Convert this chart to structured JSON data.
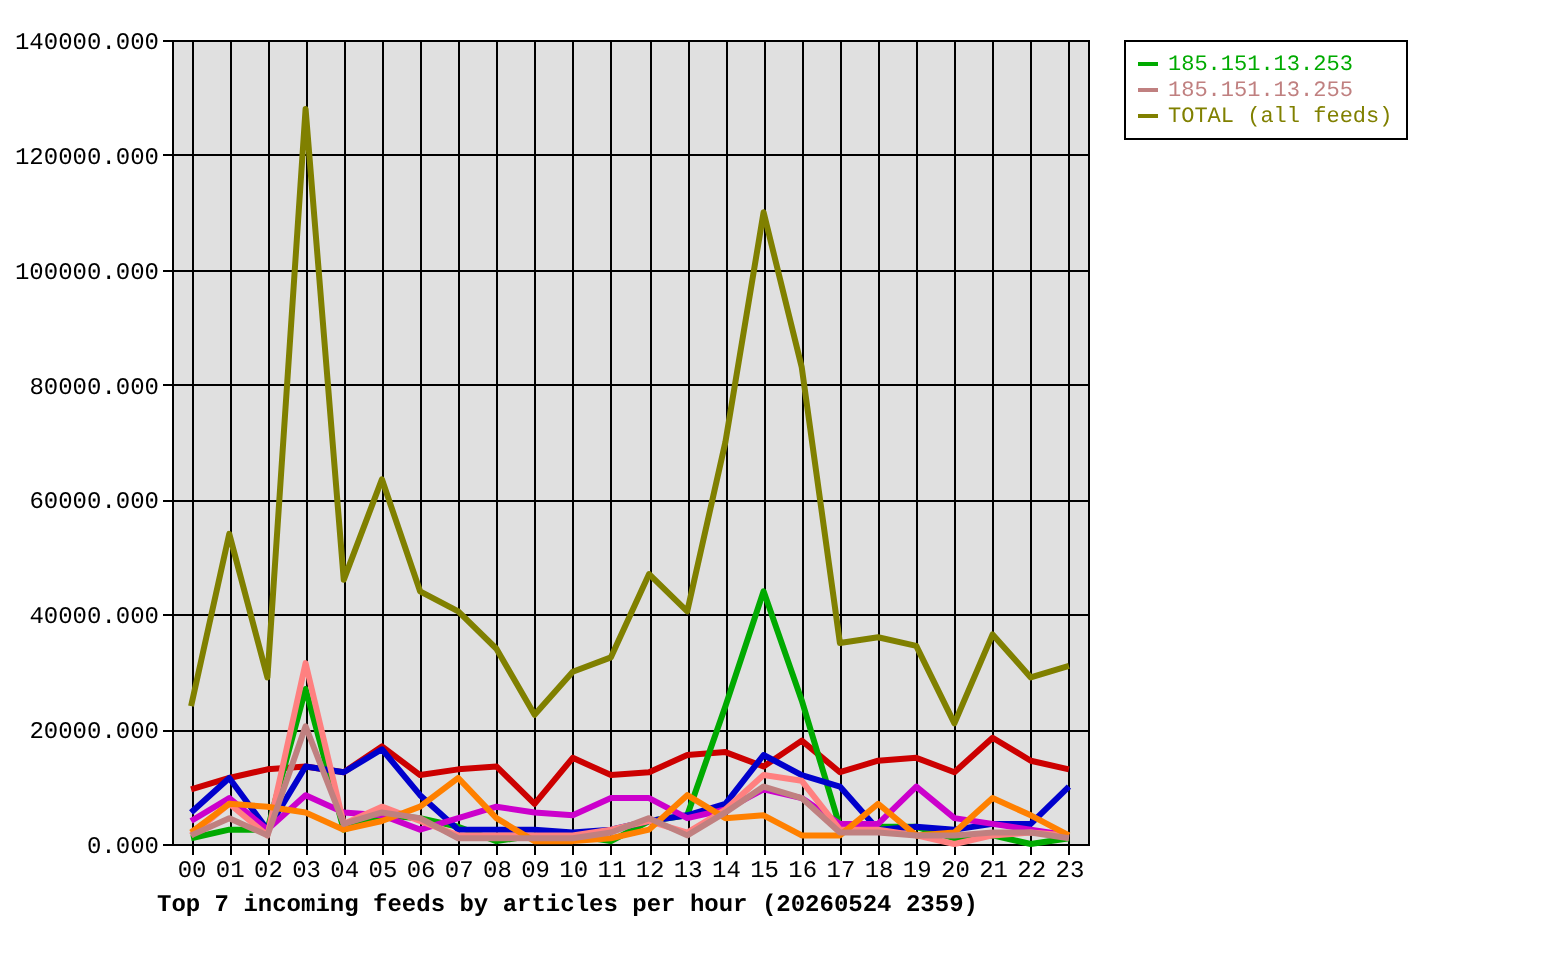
{
  "chart_data": {
    "type": "line",
    "xlabel": "Top 7 incoming feeds by articles per hour (20260524 2359)",
    "categories": [
      "00",
      "01",
      "02",
      "03",
      "04",
      "05",
      "06",
      "07",
      "08",
      "09",
      "10",
      "11",
      "12",
      "13",
      "14",
      "15",
      "16",
      "17",
      "18",
      "19",
      "20",
      "21",
      "22",
      "23"
    ],
    "ylim": [
      0,
      140000
    ],
    "yticks": [
      {
        "value": 0,
        "label": "0.000"
      },
      {
        "value": 20000,
        "label": "20000.000"
      },
      {
        "value": 40000,
        "label": "40000.000"
      },
      {
        "value": 60000,
        "label": "60000.000"
      },
      {
        "value": 80000,
        "label": "80000.000"
      },
      {
        "value": 100000,
        "label": "100000.000"
      },
      {
        "value": 120000,
        "label": "120000.000"
      },
      {
        "value": 140000,
        "label": "140000.000"
      }
    ],
    "grid": true,
    "legend": "top right",
    "series": [
      {
        "color": "#cc0000",
        "values": [
          9500,
          11500,
          13000,
          13500,
          12500,
          17000,
          12000,
          13000,
          13500,
          7000,
          15000,
          12000,
          12500,
          15500,
          16000,
          13500,
          18000,
          12500,
          14500,
          15000,
          12500,
          18500,
          14500,
          13000
        ]
      },
      {
        "name": "185.151.13.253",
        "color": "#00aa00",
        "values": [
          1000,
          2500,
          2500,
          27000,
          2500,
          5000,
          4500,
          3000,
          500,
          1500,
          1500,
          500,
          4000,
          5000,
          24000,
          44000,
          25000,
          3000,
          3000,
          3000,
          1000,
          1500,
          0,
          1000
        ]
      },
      {
        "color": "#0000cc",
        "values": [
          5500,
          11500,
          2500,
          13500,
          12500,
          16500,
          8500,
          2500,
          2500,
          2500,
          2000,
          2500,
          4000,
          5000,
          7000,
          15500,
          12000,
          10000,
          2500,
          3000,
          2500,
          3500,
          3500,
          10000
        ]
      },
      {
        "color": "#cc00cc",
        "values": [
          4000,
          8000,
          2500,
          8500,
          5500,
          5000,
          2500,
          4500,
          6500,
          5500,
          5000,
          8000,
          8000,
          4500,
          6000,
          9500,
          8000,
          3500,
          3500,
          10000,
          4500,
          3500,
          2500,
          1500
        ]
      },
      {
        "color": "#ff8080",
        "values": [
          1500,
          7000,
          1500,
          31500,
          3500,
          6500,
          4000,
          1500,
          1500,
          1500,
          1500,
          2500,
          4000,
          2000,
          6000,
          12000,
          11000,
          2500,
          2500,
          1500,
          0,
          1500,
          2000,
          1500
        ]
      },
      {
        "color": "#ff8000",
        "values": [
          2000,
          7000,
          6500,
          5500,
          2500,
          4000,
          6500,
          11500,
          4500,
          500,
          500,
          1000,
          2500,
          8500,
          4500,
          5000,
          1500,
          1500,
          7000,
          1500,
          2000,
          8000,
          5000,
          1500
        ]
      },
      {
        "name": "185.151.13.255",
        "color": "#c08080",
        "values": [
          1500,
          4500,
          1500,
          20500,
          3500,
          5500,
          4500,
          1000,
          1000,
          1000,
          1000,
          2000,
          4500,
          1500,
          5500,
          10000,
          8000,
          2000,
          2000,
          1500,
          1500,
          2000,
          2000,
          1000
        ]
      },
      {
        "name": "TOTAL (all feeds)",
        "color": "#808000",
        "values": [
          24000,
          54000,
          29000,
          128000,
          46000,
          63500,
          44000,
          40500,
          34000,
          22500,
          30000,
          32500,
          47000,
          40500,
          70000,
          110000,
          83000,
          35000,
          36000,
          34500,
          21000,
          36500,
          29000,
          31000
        ]
      }
    ]
  }
}
